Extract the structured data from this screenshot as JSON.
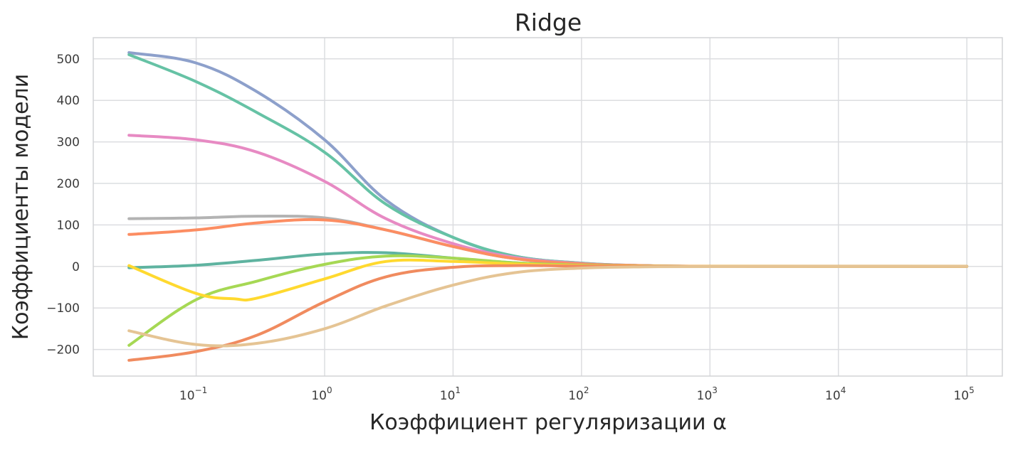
{
  "chart_data": {
    "type": "line",
    "title": "Ridge",
    "xlabel": "Коэффициент регуляризации α",
    "ylabel": "Коэффициенты модели",
    "x_scale": "log",
    "x_ticks": [
      {
        "value": 0.1,
        "base": "10",
        "exp": "−1"
      },
      {
        "value": 1,
        "base": "10",
        "exp": "0"
      },
      {
        "value": 10,
        "base": "10",
        "exp": "1"
      },
      {
        "value": 100,
        "base": "10",
        "exp": "2"
      },
      {
        "value": 1000,
        "base": "10",
        "exp": "3"
      },
      {
        "value": 10000,
        "base": "10",
        "exp": "4"
      },
      {
        "value": 100000,
        "base": "10",
        "exp": "5"
      }
    ],
    "y_ticks": [
      {
        "value": 500,
        "label": "500"
      },
      {
        "value": 400,
        "label": "400"
      },
      {
        "value": 300,
        "label": "300"
      },
      {
        "value": 200,
        "label": "200"
      },
      {
        "value": 100,
        "label": "100"
      },
      {
        "value": 0,
        "label": "0"
      },
      {
        "value": -100,
        "label": "−100"
      },
      {
        "value": -200,
        "label": "−200"
      }
    ],
    "xlim": [
      0.0158,
      189000
    ],
    "ylim": [
      -264,
      551
    ],
    "grid": true,
    "background": "#ffffff",
    "grid_color": "#dcdde0",
    "series": [
      {
        "color": "#8da0cb",
        "x": [
          0.03,
          0.1,
          0.3,
          1,
          3,
          10,
          30,
          100,
          300,
          1000,
          100000
        ],
        "values": [
          515,
          490,
          420,
          305,
          160,
          70,
          25,
          8,
          2,
          0.5,
          0
        ]
      },
      {
        "color": "#66c2a5",
        "x": [
          0.03,
          0.1,
          0.3,
          1,
          3,
          10,
          30,
          100,
          300,
          1000,
          100000
        ],
        "values": [
          510,
          445,
          370,
          275,
          150,
          70,
          25,
          8,
          2,
          0.5,
          0
        ]
      },
      {
        "color": "#e78ac3",
        "x": [
          0.03,
          0.1,
          0.3,
          1,
          3,
          10,
          30,
          100,
          300,
          1000,
          100000
        ],
        "values": [
          316,
          305,
          275,
          205,
          115,
          55,
          22,
          7,
          2,
          0.5,
          0
        ]
      },
      {
        "color": "#b3b3b3",
        "x": [
          0.03,
          0.1,
          0.3,
          1,
          3,
          10,
          30,
          100,
          300,
          1000,
          100000
        ],
        "values": [
          115,
          117,
          121,
          117,
          88,
          48,
          19,
          6,
          2,
          0.5,
          0
        ]
      },
      {
        "color": "#fc8d62",
        "x": [
          0.03,
          0.1,
          0.3,
          1,
          3,
          10,
          30,
          100,
          300,
          1000,
          100000
        ],
        "values": [
          77,
          88,
          105,
          112,
          88,
          48,
          19,
          6,
          2,
          0.5,
          0
        ]
      },
      {
        "color": "#5fb3a0",
        "x": [
          0.03,
          0.1,
          0.3,
          1,
          3,
          10,
          30,
          100,
          300,
          1000,
          100000
        ],
        "values": [
          -3,
          3,
          15,
          30,
          33,
          20,
          9,
          3,
          1,
          0.3,
          0
        ]
      },
      {
        "color": "#a6d854",
        "x": [
          0.03,
          0.1,
          0.3,
          1,
          3,
          10,
          30,
          100,
          300,
          1000,
          100000
        ],
        "values": [
          -190,
          -80,
          -35,
          5,
          25,
          20,
          9,
          3,
          1,
          0.3,
          0
        ]
      },
      {
        "color": "#ffd92f",
        "x": [
          0.03,
          0.1,
          0.2,
          0.3,
          1,
          3,
          10,
          30,
          100,
          300,
          1000,
          100000
        ],
        "values": [
          2,
          -65,
          -78,
          -76,
          -30,
          12,
          12,
          6,
          2,
          1,
          0.3,
          0
        ]
      },
      {
        "color": "#f08b5f",
        "x": [
          0.03,
          0.1,
          0.3,
          1,
          3,
          10,
          30,
          100,
          300,
          1000,
          100000
        ],
        "values": [
          -226,
          -205,
          -165,
          -85,
          -25,
          -2,
          2,
          1,
          0.5,
          0.2,
          0
        ]
      },
      {
        "color": "#e5c494",
        "x": [
          0.03,
          0.1,
          0.3,
          1,
          3,
          10,
          30,
          100,
          300,
          1000,
          100000
        ],
        "values": [
          -155,
          -188,
          -185,
          -150,
          -95,
          -45,
          -15,
          -4,
          -1,
          -0.3,
          0
        ]
      }
    ]
  }
}
